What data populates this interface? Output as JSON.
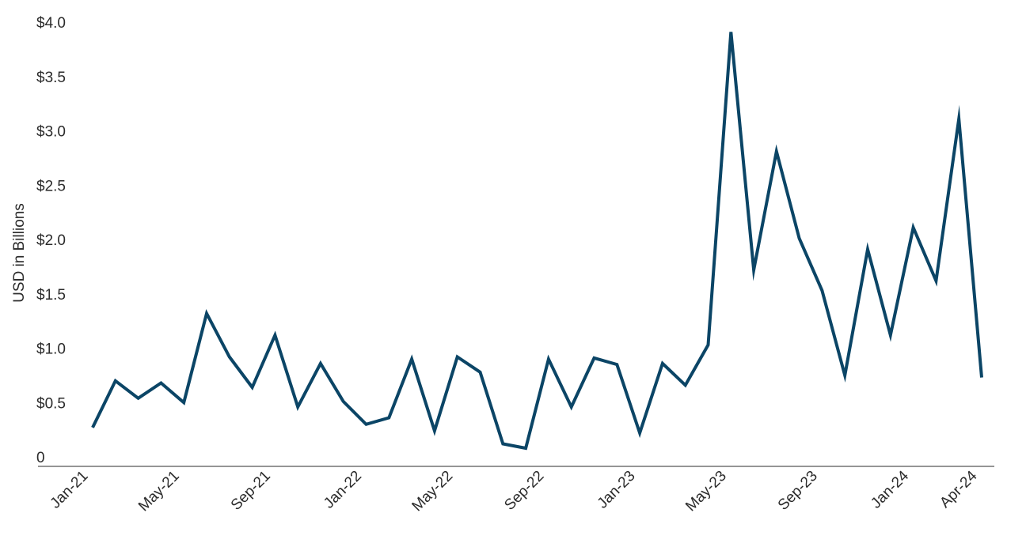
{
  "chart_data": {
    "type": "line",
    "title": "",
    "xlabel": "",
    "ylabel": "USD in Billions",
    "ylim": [
      0,
      4.0
    ],
    "y_ticks": [
      {
        "value": 0,
        "label": "0"
      },
      {
        "value": 0.5,
        "label": "$0.5"
      },
      {
        "value": 1.0,
        "label": "$1.0"
      },
      {
        "value": 1.5,
        "label": "$1.5"
      },
      {
        "value": 2.0,
        "label": "$2.0"
      },
      {
        "value": 2.5,
        "label": "$2.5"
      },
      {
        "value": 3.0,
        "label": "$3.0"
      },
      {
        "value": 3.5,
        "label": "$3.5"
      },
      {
        "value": 4.0,
        "label": "$4.0"
      }
    ],
    "x_tick_labels": [
      "Jan-21",
      "May-21",
      "Sep-21",
      "Jan-22",
      "May-22",
      "Sep-22",
      "Jan-23",
      "May-23",
      "Sep-23",
      "Jan-24",
      "Apr-24"
    ],
    "grid": false,
    "legend": "none",
    "line_color": "#0b4566",
    "x": [
      "Jan-21",
      "Feb-21",
      "Mar-21",
      "Apr-21",
      "May-21",
      "Jun-21",
      "Jul-21",
      "Aug-21",
      "Sep-21",
      "Oct-21",
      "Nov-21",
      "Dec-21",
      "Jan-22",
      "Feb-22",
      "Mar-22",
      "Apr-22",
      "May-22",
      "Jun-22",
      "Jul-22",
      "Aug-22",
      "Sep-22",
      "Oct-22",
      "Nov-22",
      "Dec-22",
      "Jan-23",
      "Feb-23",
      "Mar-23",
      "Apr-23",
      "May-23",
      "Jun-23",
      "Jul-23",
      "Aug-23",
      "Sep-23",
      "Oct-23",
      "Nov-23",
      "Dec-23",
      "Jan-24",
      "Feb-24",
      "Mar-24",
      "Apr-24"
    ],
    "series": [
      {
        "values": [
          0.27,
          0.7,
          0.54,
          0.68,
          0.5,
          1.32,
          0.92,
          0.64,
          1.12,
          0.46,
          0.86,
          0.51,
          0.3,
          0.36,
          0.9,
          0.24,
          0.92,
          0.78,
          0.12,
          0.08,
          0.9,
          0.46,
          0.91,
          0.85,
          0.22,
          0.86,
          0.66,
          1.03,
          3.91,
          1.72,
          2.81,
          2.01,
          1.53,
          0.75,
          1.91,
          1.12,
          2.11,
          1.62,
          3.11,
          0.73
        ]
      }
    ]
  }
}
